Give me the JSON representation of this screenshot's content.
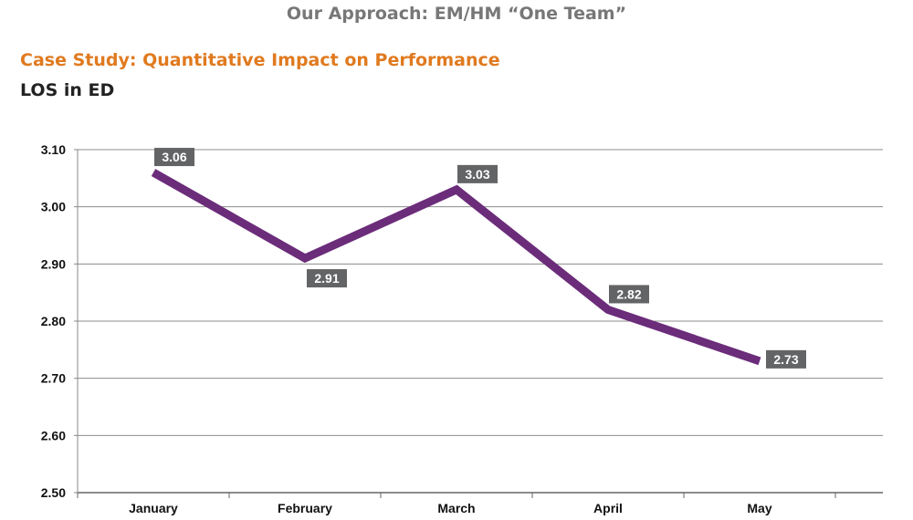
{
  "header": "Our Approach: EM/HM “One Team”",
  "subtitle": "Case Study: Quantitative Impact on Performance",
  "colors": {
    "line": "#6b2c7a",
    "label_bg": "#636466",
    "grid": "#8c8c8c",
    "subtitle": "#e07a1f"
  },
  "chart_data": {
    "type": "line",
    "title": "LOS in ED",
    "categories": [
      "January",
      "February",
      "March",
      "April",
      "May"
    ],
    "series": [
      {
        "values": [
          3.06,
          2.91,
          3.03,
          2.82,
          2.73
        ]
      }
    ],
    "data_labels": [
      "3.06",
      "2.91",
      "3.03",
      "2.82",
      "2.73"
    ],
    "ylim": [
      2.5,
      3.1
    ],
    "yticks": [
      "2.50",
      "2.60",
      "2.70",
      "2.80",
      "2.90",
      "3.00",
      "3.10"
    ],
    "grid": true,
    "xlabel": "",
    "ylabel": ""
  }
}
